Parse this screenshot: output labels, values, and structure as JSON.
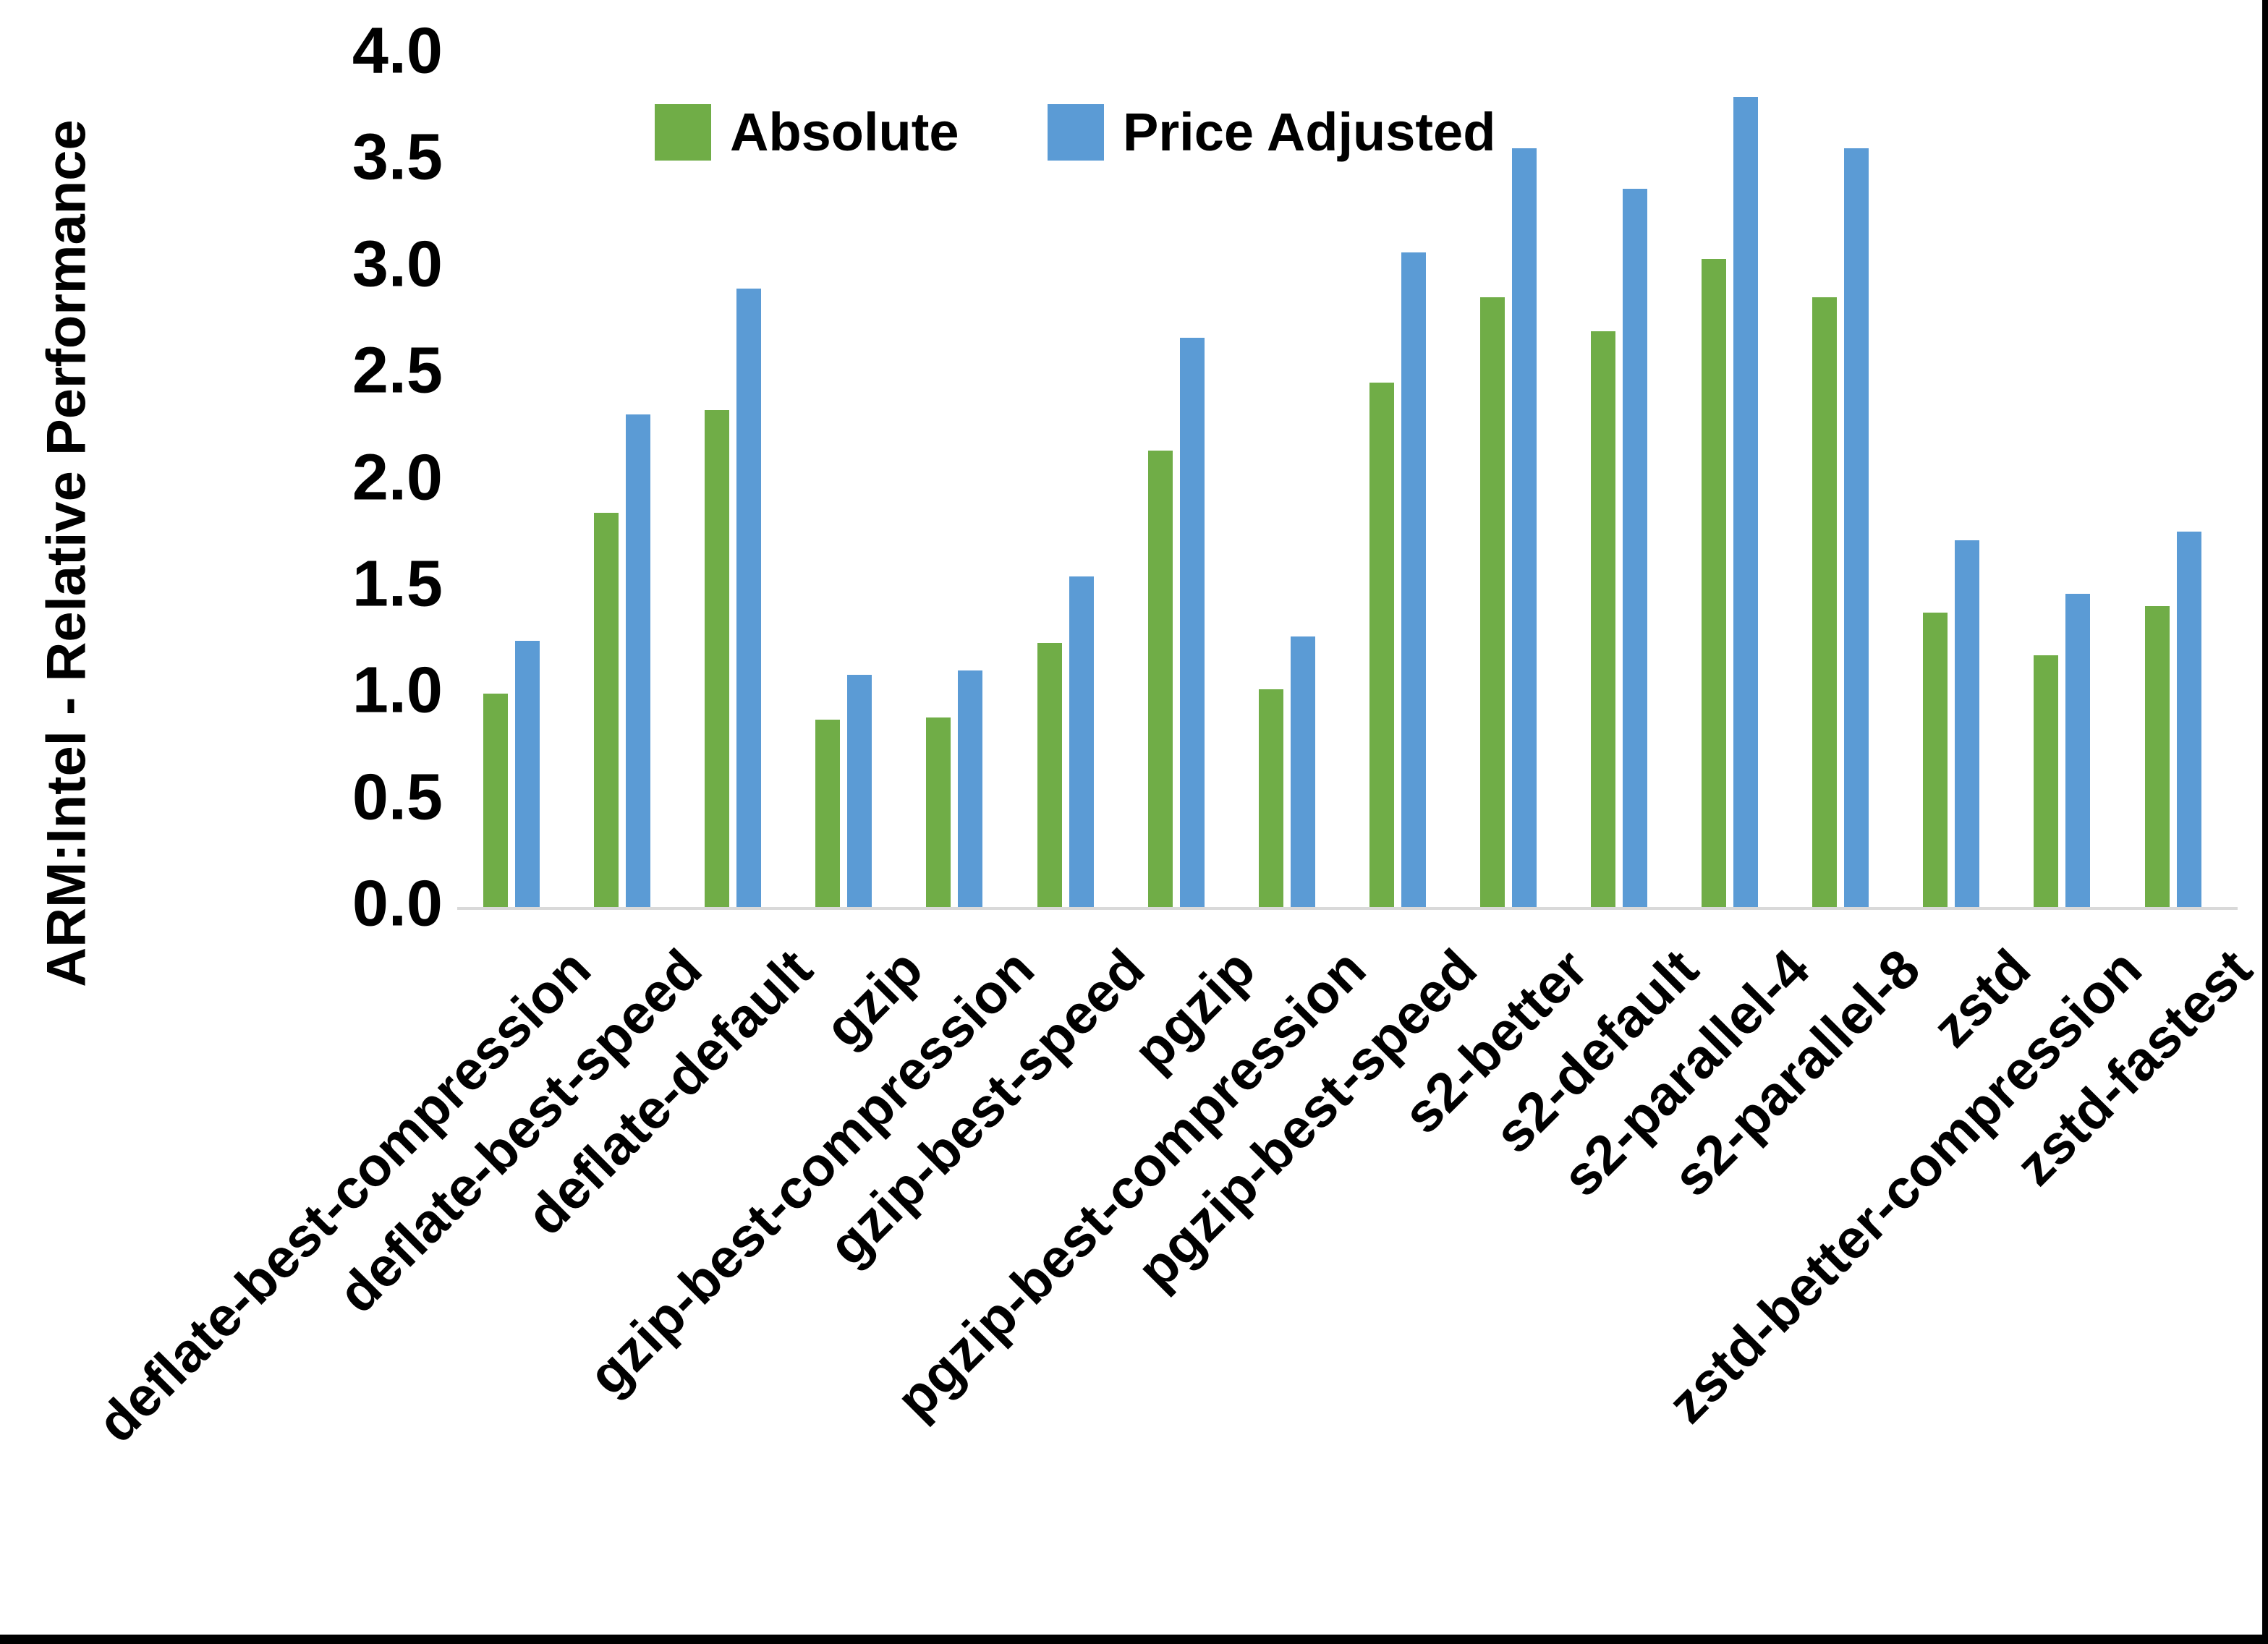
{
  "chart_data": {
    "type": "bar",
    "title": "",
    "xlabel": "",
    "ylabel": "ARM:Intel - Relative Performance",
    "ylim": [
      0.0,
      4.0
    ],
    "yticks": [
      4.0,
      3.5,
      3.0,
      2.5,
      2.0,
      1.5,
      1.0,
      0.5,
      0.0
    ],
    "grid": false,
    "legend_position": "top-center",
    "categories": [
      "deflate-best-compression",
      "deflate-best-speed",
      "deflate-default",
      "gzip",
      "gzip-best-compression",
      "gzip-best-speed",
      "pgzip",
      "pgzip-best-compression",
      "pgzip-best-speed",
      "s2-better",
      "s2-default",
      "s2-parallel-4",
      "s2-parallel-8",
      "zstd",
      "zstd-better-compression",
      "zstd-fastest"
    ],
    "series": [
      {
        "name": "Absolute",
        "color": "#70AD47",
        "values": [
          1.0,
          1.85,
          2.33,
          0.88,
          0.89,
          1.24,
          2.14,
          1.02,
          2.46,
          2.86,
          2.7,
          3.04,
          2.86,
          1.38,
          1.18,
          1.41
        ]
      },
      {
        "name": "Price Adjusted",
        "color": "#5B9BD5",
        "values": [
          1.25,
          2.31,
          2.9,
          1.09,
          1.11,
          1.55,
          2.67,
          1.27,
          3.07,
          3.56,
          3.37,
          3.8,
          3.56,
          1.72,
          1.47,
          1.76
        ]
      }
    ]
  },
  "colors": {
    "background": "#FFFFFF",
    "text": "#000000",
    "axis_line": "#D9D9D9",
    "frame_border": "#000000"
  }
}
